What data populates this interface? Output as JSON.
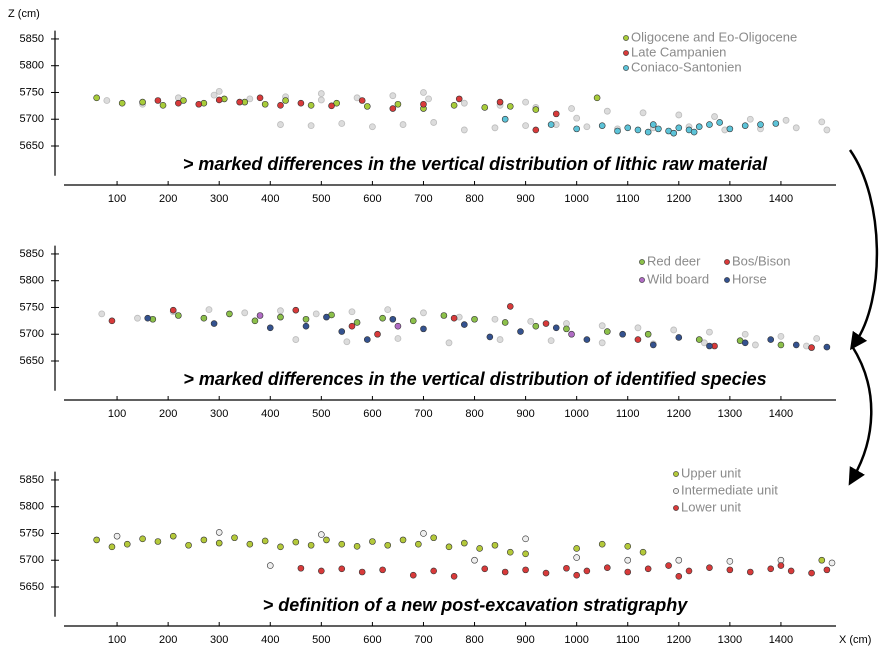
{
  "chart_data": [
    {
      "type": "scatter",
      "y_label": "Z (cm)",
      "annotation": "> marked differences in the vertical distribution of lithic raw material",
      "xlim": [
        0,
        1500
      ],
      "xticks": [
        100,
        200,
        300,
        400,
        500,
        600,
        700,
        800,
        900,
        1000,
        1100,
        1200,
        1300,
        1400
      ],
      "ylim": [
        5600,
        5860
      ],
      "yticks": [
        5650,
        5700,
        5750,
        5800,
        5850
      ],
      "series": [
        {
          "color": "#dcdcdc",
          "x": [
            80,
            150,
            220,
            290,
            360,
            430,
            500,
            570,
            640,
            710,
            780,
            850,
            920,
            990,
            1060,
            1130,
            1200,
            1270,
            1340,
            1410,
            1480,
            420,
            480,
            540,
            600,
            660,
            720,
            780,
            840,
            900,
            960,
            1020,
            1080,
            1150,
            1220,
            1290,
            1360,
            1430,
            1490,
            300,
            500,
            700,
            900,
            1000
          ],
          "values": [
            5735,
            5728,
            5740,
            5745,
            5738,
            5742,
            5736,
            5740,
            5744,
            5738,
            5730,
            5726,
            5722,
            5720,
            5715,
            5712,
            5708,
            5705,
            5700,
            5698,
            5695,
            5690,
            5688,
            5692,
            5686,
            5690,
            5694,
            5680,
            5684,
            5688,
            5690,
            5686,
            5682,
            5684,
            5686,
            5680,
            5682,
            5684,
            5680,
            5752,
            5748,
            5750,
            5732,
            5702
          ]
        },
        {
          "name": "Oligocene and Eo-Oligocene",
          "color": "#a8cc3a",
          "x": [
            60,
            110,
            150,
            190,
            230,
            270,
            310,
            350,
            390,
            430,
            480,
            530,
            590,
            650,
            700,
            760,
            820,
            870,
            920,
            1040
          ],
          "values": [
            5740,
            5730,
            5732,
            5726,
            5735,
            5730,
            5738,
            5732,
            5728,
            5735,
            5726,
            5730,
            5724,
            5728,
            5720,
            5726,
            5722,
            5724,
            5718,
            5740
          ]
        },
        {
          "name": "Late Campanien",
          "color": "#d83a3a",
          "x": [
            180,
            220,
            260,
            300,
            340,
            380,
            420,
            460,
            520,
            580,
            640,
            700,
            770,
            850,
            920,
            960
          ],
          "values": [
            5735,
            5730,
            5728,
            5736,
            5732,
            5740,
            5726,
            5730,
            5725,
            5735,
            5720,
            5728,
            5738,
            5732,
            5680,
            5710
          ]
        },
        {
          "name": "Coniaco-Santonien",
          "color": "#5cc3d8",
          "x": [
            860,
            950,
            1000,
            1050,
            1080,
            1100,
            1120,
            1140,
            1160,
            1180,
            1200,
            1220,
            1240,
            1260,
            1280,
            1300,
            1330,
            1360,
            1390,
            1150,
            1190,
            1230
          ],
          "values": [
            5700,
            5690,
            5682,
            5688,
            5678,
            5684,
            5680,
            5676,
            5682,
            5678,
            5684,
            5680,
            5686,
            5690,
            5694,
            5682,
            5688,
            5690,
            5692,
            5690,
            5674,
            5676
          ]
        }
      ]
    },
    {
      "type": "scatter",
      "annotation": "> marked differences in the vertical distribution of identified species",
      "xlim": [
        0,
        1500
      ],
      "xticks": [
        100,
        200,
        300,
        400,
        500,
        600,
        700,
        800,
        900,
        1000,
        1100,
        1200,
        1300,
        1400
      ],
      "ylim": [
        5600,
        5860
      ],
      "yticks": [
        5650,
        5700,
        5750,
        5800,
        5850
      ],
      "series": [
        {
          "color": "#dcdcdc",
          "x": [
            70,
            140,
            210,
            280,
            350,
            420,
            490,
            560,
            630,
            700,
            770,
            840,
            910,
            980,
            1050,
            1120,
            1190,
            1260,
            1330,
            1400,
            1470,
            450,
            550,
            650,
            750,
            850,
            950,
            1050,
            1150,
            1250,
            1350,
            1450
          ],
          "values": [
            5738,
            5730,
            5742,
            5746,
            5740,
            5744,
            5738,
            5742,
            5746,
            5740,
            5732,
            5728,
            5724,
            5720,
            5716,
            5712,
            5708,
            5704,
            5700,
            5696,
            5692,
            5690,
            5686,
            5692,
            5684,
            5690,
            5688,
            5684,
            5682,
            5684,
            5680,
            5678
          ]
        },
        {
          "name": "Red deer",
          "color": "#8cc04a",
          "x": [
            170,
            220,
            270,
            320,
            370,
            420,
            470,
            520,
            570,
            620,
            680,
            740,
            800,
            860,
            920,
            980,
            1060,
            1140,
            1240,
            1320,
            1400
          ],
          "values": [
            5728,
            5735,
            5730,
            5738,
            5725,
            5732,
            5728,
            5736,
            5722,
            5730,
            5725,
            5735,
            5728,
            5722,
            5715,
            5710,
            5705,
            5700,
            5690,
            5688,
            5680
          ]
        },
        {
          "name": "Bos/Bison",
          "color": "#d83a3a",
          "x": [
            90,
            210,
            450,
            560,
            610,
            760,
            870,
            940,
            1120,
            1270,
            1460
          ],
          "values": [
            5725,
            5745,
            5745,
            5715,
            5700,
            5730,
            5752,
            5720,
            5690,
            5678,
            5675
          ]
        },
        {
          "name": "Wild board",
          "color": "#b06cc4",
          "x": [
            380,
            650,
            990
          ],
          "values": [
            5735,
            5715,
            5700
          ]
        },
        {
          "name": "Horse",
          "color": "#34528f",
          "x": [
            160,
            290,
            400,
            470,
            510,
            540,
            590,
            640,
            700,
            780,
            830,
            890,
            960,
            1020,
            1090,
            1150,
            1200,
            1260,
            1330,
            1380,
            1430,
            1490
          ],
          "values": [
            5730,
            5720,
            5712,
            5715,
            5732,
            5705,
            5690,
            5728,
            5710,
            5718,
            5695,
            5705,
            5712,
            5690,
            5700,
            5680,
            5694,
            5678,
            5684,
            5690,
            5680,
            5676
          ]
        }
      ]
    },
    {
      "type": "scatter",
      "x_label": "X (cm)",
      "annotation": "> definition of a new post-excavation stratigraphy",
      "xlim": [
        0,
        1500
      ],
      "xticks": [
        100,
        200,
        300,
        400,
        500,
        600,
        700,
        800,
        900,
        1000,
        1100,
        1200,
        1300,
        1400
      ],
      "ylim": [
        5600,
        5860
      ],
      "yticks": [
        5650,
        5700,
        5750,
        5800,
        5850
      ],
      "series": [
        {
          "name": "Upper unit",
          "color": "#b4c93a",
          "x": [
            60,
            90,
            120,
            150,
            180,
            210,
            240,
            270,
            300,
            330,
            360,
            390,
            420,
            450,
            480,
            510,
            540,
            570,
            600,
            630,
            660,
            690,
            720,
            750,
            780,
            810,
            840,
            870,
            900,
            1000,
            1050,
            1100,
            1130,
            1480
          ],
          "values": [
            5738,
            5725,
            5730,
            5740,
            5735,
            5745,
            5728,
            5738,
            5732,
            5742,
            5730,
            5736,
            5725,
            5734,
            5728,
            5738,
            5730,
            5726,
            5735,
            5728,
            5738,
            5730,
            5742,
            5725,
            5732,
            5722,
            5728,
            5715,
            5712,
            5722,
            5730,
            5726,
            5715,
            5700
          ]
        },
        {
          "name": "Intermediate unit",
          "color": "#eeeeee",
          "x": [
            100,
            300,
            500,
            700,
            900,
            1000,
            1100,
            1200,
            1300,
            1400,
            1500,
            400,
            800
          ],
          "values": [
            5745,
            5752,
            5748,
            5750,
            5740,
            5705,
            5700,
            5700,
            5698,
            5700,
            5695,
            5690,
            5700
          ]
        },
        {
          "name": "Lower unit",
          "color": "#d83a3a",
          "x": [
            460,
            500,
            540,
            580,
            620,
            680,
            720,
            760,
            820,
            860,
            900,
            940,
            980,
            1020,
            1060,
            1100,
            1140,
            1180,
            1220,
            1260,
            1300,
            1340,
            1380,
            1420,
            1460,
            1490,
            1000,
            1200,
            1400
          ],
          "values": [
            5685,
            5680,
            5684,
            5678,
            5682,
            5672,
            5680,
            5670,
            5684,
            5678,
            5682,
            5676,
            5685,
            5680,
            5686,
            5678,
            5684,
            5690,
            5680,
            5686,
            5682,
            5678,
            5684,
            5680,
            5676,
            5682,
            5672,
            5670,
            5690
          ]
        }
      ]
    }
  ]
}
